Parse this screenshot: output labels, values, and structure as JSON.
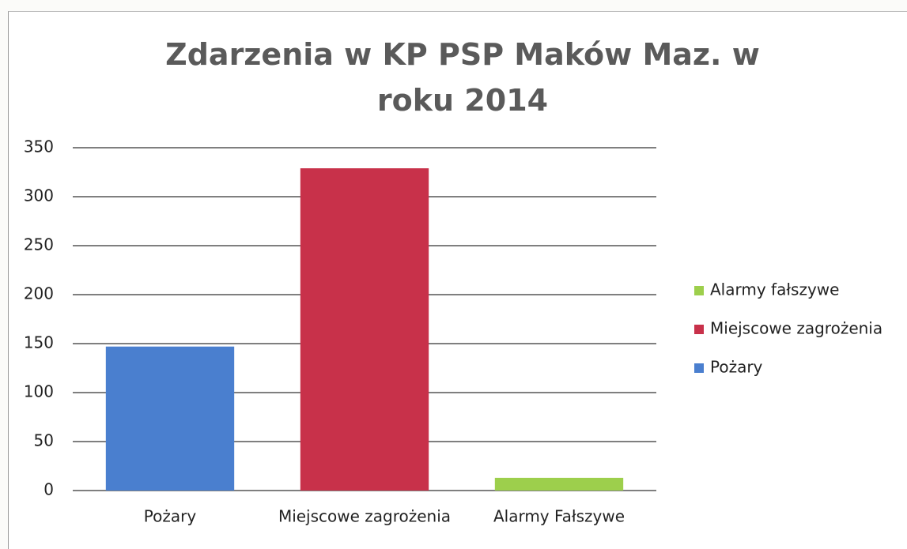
{
  "chart_data": {
    "type": "bar",
    "title": "Zdarzenia w KP PSP Maków Maz. w roku 2014",
    "categories": [
      "Pożary",
      "Miejscowe zagrożenia",
      "Alarmy Fałszywe"
    ],
    "series": [
      {
        "name": "Alarmy fałszywe",
        "color": "#9dcf4c",
        "values": [
          null,
          null,
          13
        ]
      },
      {
        "name": "Miejscowe zagrożenia",
        "color": "#c8314a",
        "values": [
          null,
          329,
          null
        ]
      },
      {
        "name": "Pożary",
        "color": "#4a7fcf",
        "values": [
          147,
          null,
          null
        ]
      }
    ],
    "ylim": [
      0,
      350
    ],
    "yticks": [
      0,
      50,
      100,
      150,
      200,
      250,
      300,
      350
    ],
    "grid": true,
    "legend": "right"
  }
}
